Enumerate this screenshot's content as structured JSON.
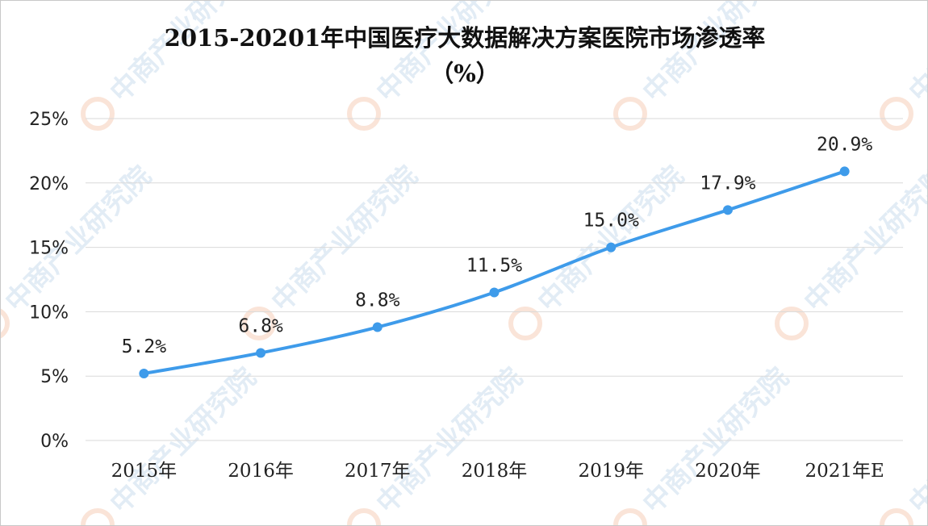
{
  "watermark": {
    "text": "中商产业研究院"
  },
  "colors": {
    "series": "#3e9bea",
    "grid": "#d9d9d9",
    "watermark_icon": "#f2b38f"
  },
  "chart_data": {
    "type": "line",
    "title": "2015-20201年中国医疗大数据解决方案医院市场渗透率",
    "subtitle": "（%）",
    "categories": [
      "2015年",
      "2016年",
      "2017年",
      "2018年",
      "2019年",
      "2020年",
      "2021年E"
    ],
    "series": [
      {
        "values": [
          5.2,
          6.8,
          8.8,
          11.5,
          15.0,
          17.9,
          20.9
        ],
        "labels": [
          "5.2%",
          "6.8%",
          "8.8%",
          "11.5%",
          "15.0%",
          "17.9%",
          "20.9%"
        ]
      }
    ],
    "ylim": [
      0,
      25
    ],
    "yticks": [
      0,
      5,
      10,
      15,
      20,
      25
    ],
    "ytick_labels": [
      "0%",
      "5%",
      "10%",
      "15%",
      "20%",
      "25%"
    ],
    "grid": true,
    "legend": "none"
  }
}
